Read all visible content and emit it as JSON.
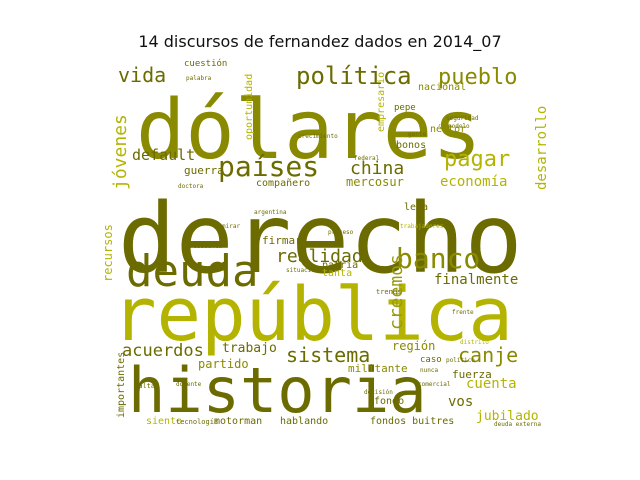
{
  "title": "14 discursos de fernandez dados en 2014_07",
  "palette": {
    "dark": "#6b6b00",
    "mid": "#8a8a00",
    "olive": "#9a9a10",
    "bright": "#b4b400",
    "light": "#c8c820"
  },
  "words": [
    {
      "text": "derecho",
      "tone": "dark",
      "weight": 100
    },
    {
      "text": "dólares",
      "tone": "mid",
      "weight": 84
    },
    {
      "text": "república",
      "tone": "bright",
      "weight": 82
    },
    {
      "text": "historia",
      "tone": "dark",
      "weight": 62
    },
    {
      "text": "deuda",
      "tone": "dark",
      "weight": 46
    },
    {
      "text": "países",
      "tone": "dark",
      "weight": 30
    },
    {
      "text": "banco",
      "tone": "mid",
      "weight": 28
    },
    {
      "text": "política",
      "tone": "dark",
      "weight": 24
    },
    {
      "text": "pueblo",
      "tone": "mid",
      "weight": 22
    },
    {
      "text": "pagar",
      "tone": "bright",
      "weight": 22
    },
    {
      "text": "canje",
      "tone": "mid",
      "weight": 20
    },
    {
      "text": "vida",
      "tone": "dark",
      "weight": 20
    },
    {
      "text": "sistema",
      "tone": "dark",
      "weight": 20
    },
    {
      "text": "china",
      "tone": "dark",
      "weight": 18
    },
    {
      "text": "realidad",
      "tone": "dark",
      "weight": 18
    },
    {
      "text": "creemos",
      "tone": "olive",
      "weight": 18
    },
    {
      "text": "jóvenes",
      "tone": "bright",
      "weight": 18
    },
    {
      "text": "acuerdos",
      "tone": "dark",
      "weight": 17
    },
    {
      "text": "default",
      "tone": "dark",
      "weight": 15
    },
    {
      "text": "finalmente",
      "tone": "dark",
      "weight": 14
    },
    {
      "text": "economía",
      "tone": "bright",
      "weight": 14
    },
    {
      "text": "desarrollo",
      "tone": "bright",
      "weight": 14
    },
    {
      "text": "cuenta",
      "tone": "bright",
      "weight": 14
    },
    {
      "text": "vos",
      "tone": "dark",
      "weight": 14
    },
    {
      "text": "trabajo",
      "tone": "dark",
      "weight": 13
    },
    {
      "text": "jubilado",
      "tone": "bright",
      "weight": 13
    },
    {
      "text": "región",
      "tone": "mid",
      "weight": 12
    },
    {
      "text": "mercosur",
      "tone": "mid",
      "weight": 12
    },
    {
      "text": "partido",
      "tone": "mid",
      "weight": 12
    },
    {
      "text": "recursos",
      "tone": "bright",
      "weight": 12
    },
    {
      "text": "militante",
      "tone": "mid",
      "weight": 11
    },
    {
      "text": "fuerza",
      "tone": "dark",
      "weight": 11
    },
    {
      "text": "guerra",
      "tone": "dark",
      "weight": 11
    },
    {
      "text": "firmar",
      "tone": "dark",
      "weight": 11
    },
    {
      "text": "patria",
      "tone": "dark",
      "weight": 10
    },
    {
      "text": "néstor",
      "tone": "mid",
      "weight": 10
    },
    {
      "text": "nacional",
      "tone": "mid",
      "weight": 10
    },
    {
      "text": "bonos",
      "tone": "dark",
      "weight": 10
    },
    {
      "text": "oportunidad",
      "tone": "bright",
      "weight": 10
    },
    {
      "text": "empresario",
      "tone": "bright",
      "weight": 10
    },
    {
      "text": "importantes",
      "tone": "dark",
      "weight": 10
    },
    {
      "text": "compañero",
      "tone": "dark",
      "weight": 10
    },
    {
      "text": "hablando",
      "tone": "dark",
      "weight": 10
    },
    {
      "text": "fondos buitres",
      "tone": "dark",
      "weight": 10
    },
    {
      "text": "fondo",
      "tone": "dark",
      "weight": 10
    },
    {
      "text": "motorman",
      "tone": "dark",
      "weight": 10
    },
    {
      "text": "siento",
      "tone": "bright",
      "weight": 10
    },
    {
      "text": "lema",
      "tone": "dark",
      "weight": 10
    },
    {
      "text": "tanta",
      "tone": "bright",
      "weight": 10
    },
    {
      "text": "cuestión",
      "tone": "dark",
      "weight": 9
    },
    {
      "text": "pepe",
      "tone": "dark",
      "weight": 9
    },
    {
      "text": "caso",
      "tone": "dark",
      "weight": 9
    },
    {
      "text": "tecnología",
      "tone": "dark",
      "weight": 9
    },
    {
      "text": "falta",
      "tone": "dark",
      "weight": 9
    },
    {
      "text": "trenes",
      "tone": "dark",
      "weight": 9
    },
    {
      "text": "gente",
      "tone": "dark",
      "weight": 8
    },
    {
      "text": "trabajadores",
      "tone": "bright",
      "weight": 8
    },
    {
      "text": "argentina",
      "tone": "dark",
      "weight": 8
    },
    {
      "text": "federal",
      "tone": "dark",
      "weight": 8
    },
    {
      "text": "proceso",
      "tone": "dark",
      "weight": 8
    },
    {
      "text": "doctora",
      "tone": "dark",
      "weight": 8
    },
    {
      "text": "mirar",
      "tone": "dark",
      "weight": 8
    },
    {
      "text": "situación",
      "tone": "dark",
      "weight": 8
    },
    {
      "text": "docente",
      "tone": "dark",
      "weight": 8
    },
    {
      "text": "presidenta",
      "tone": "dark",
      "weight": 8
    },
    {
      "text": "seguridad",
      "tone": "dark",
      "weight": 8
    },
    {
      "text": "nunca",
      "tone": "dark",
      "weight": 8
    },
    {
      "text": "deuda externa",
      "tone": "dark",
      "weight": 8
    },
    {
      "text": "distrito",
      "tone": "bright",
      "weight": 8
    },
    {
      "text": "decisión",
      "tone": "dark",
      "weight": 8
    },
    {
      "text": "político",
      "tone": "dark",
      "weight": 8
    },
    {
      "text": "modelo",
      "tone": "dark",
      "weight": 8
    },
    {
      "text": "comercial",
      "tone": "dark",
      "weight": 8
    },
    {
      "text": "frente",
      "tone": "dark",
      "weight": 8
    },
    {
      "text": "crecimiento",
      "tone": "dark",
      "weight": 8
    },
    {
      "text": "palabra",
      "tone": "dark",
      "weight": 8
    }
  ]
}
